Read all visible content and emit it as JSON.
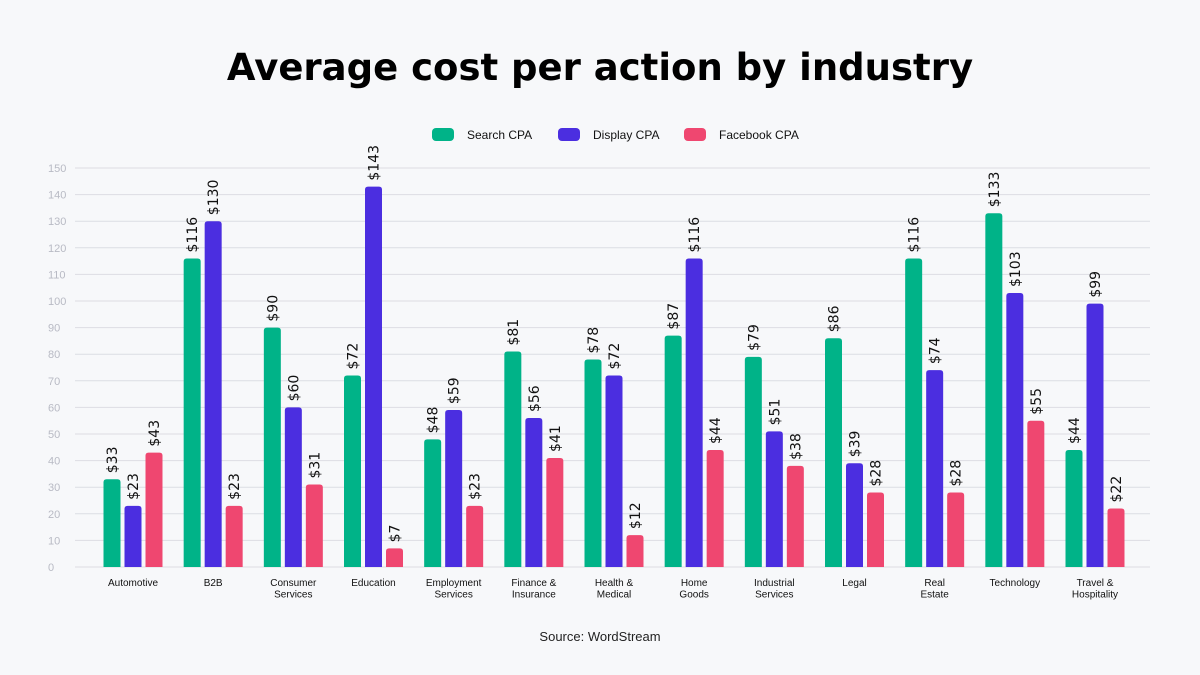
{
  "chart_data": {
    "type": "bar",
    "title": "Average cost per action by industry",
    "source": "Source: WordStream",
    "xlabel": "",
    "ylabel": "",
    "ylim": [
      0,
      150
    ],
    "yticks": [
      0,
      10,
      20,
      30,
      40,
      50,
      60,
      70,
      80,
      90,
      100,
      110,
      120,
      130,
      140,
      150
    ],
    "grid": true,
    "legend_position": "top-center",
    "value_prefix": "$",
    "categories": [
      [
        "Automotive"
      ],
      [
        "B2B"
      ],
      [
        "Consumer",
        "Services"
      ],
      [
        "Education"
      ],
      [
        "Employment",
        "Services"
      ],
      [
        "Finance &",
        "Insurance"
      ],
      [
        "Health &",
        "Medical"
      ],
      [
        "Home",
        "Goods"
      ],
      [
        "Industrial",
        "Services"
      ],
      [
        "Legal"
      ],
      [
        "Real",
        "Estate"
      ],
      [
        "Technology"
      ],
      [
        "Travel &",
        "Hospitality"
      ]
    ],
    "series": [
      {
        "name": "Search CPA",
        "color": "#00b388",
        "values": [
          33,
          116,
          90,
          72,
          48,
          81,
          78,
          87,
          79,
          86,
          116,
          133,
          44
        ]
      },
      {
        "name": "Display CPA",
        "color": "#4b2ee0",
        "values": [
          23,
          130,
          60,
          143,
          59,
          56,
          72,
          116,
          51,
          39,
          74,
          103,
          99
        ]
      },
      {
        "name": "Facebook CPA",
        "color": "#ef4770",
        "values": [
          43,
          23,
          31,
          7,
          23,
          41,
          12,
          44,
          38,
          28,
          28,
          55,
          22
        ]
      }
    ]
  }
}
